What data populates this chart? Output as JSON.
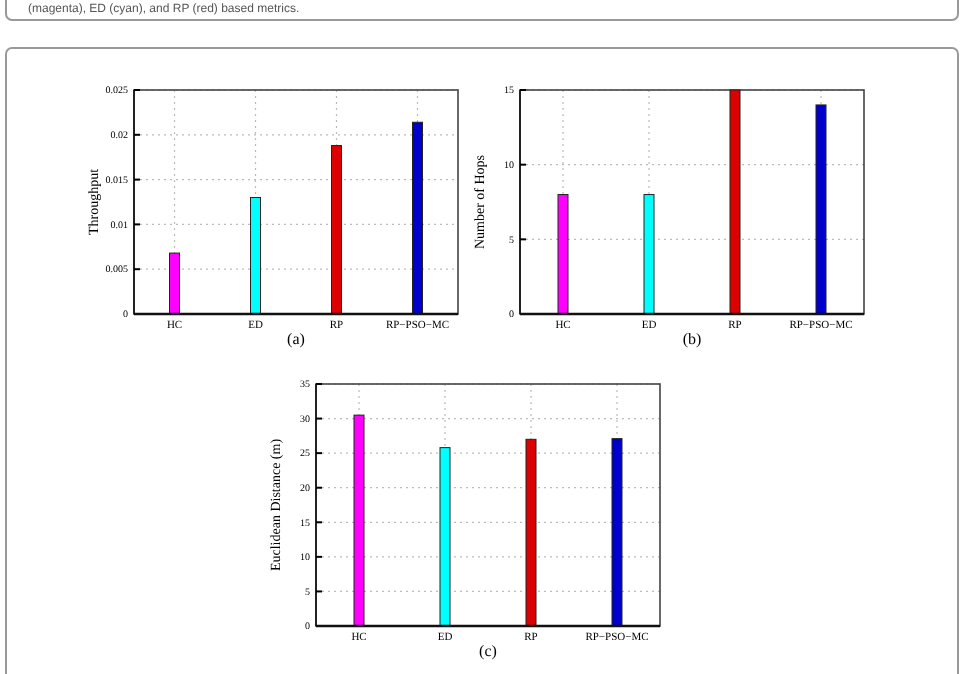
{
  "chart_data": [
    {
      "type": "bar",
      "ylabel": "Throughput",
      "categories": [
        "HC",
        "ED",
        "RP",
        "RP−PSO−MC"
      ],
      "values": [
        0.0068,
        0.013,
        0.0188,
        0.0214
      ],
      "colors": [
        "#ff00ff",
        "#00ffff",
        "#dd0000",
        "#0000cc"
      ],
      "ylim": [
        0,
        0.025
      ],
      "yticks": [
        0,
        0.005,
        0.01,
        0.015,
        0.02,
        0.025
      ],
      "grid": true,
      "annotations": [
        "(magenta), ED (cyan), and RP (red) based metrics.",
        "(a)"
      ]
    },
    {
      "type": "bar",
      "ylabel": "Number of Hops",
      "categories": [
        "HC",
        "ED",
        "RP",
        "RP−PSO−MC"
      ],
      "values": [
        8,
        8,
        15,
        14
      ],
      "colors": [
        "#ff00ff",
        "#00ffff",
        "#dd0000",
        "#0000cc"
      ],
      "ylim": [
        0,
        15
      ],
      "yticks": [
        0,
        5,
        10,
        15
      ],
      "grid": true,
      "annotations": [
        "(b)"
      ]
    },
    {
      "type": "bar",
      "ylabel": "Euclidean Distance (m)",
      "categories": [
        "HC",
        "ED",
        "RP",
        "RP−PSO−MC"
      ],
      "values": [
        30.5,
        25.8,
        27,
        27.1
      ],
      "colors": [
        "#ff00ff",
        "#00ffff",
        "#dd0000",
        "#0000cc"
      ],
      "ylim": [
        0,
        35
      ],
      "yticks": [
        0,
        5,
        10,
        15,
        20,
        25,
        30,
        35
      ],
      "grid": true,
      "annotations": [
        "(c)"
      ]
    }
  ]
}
